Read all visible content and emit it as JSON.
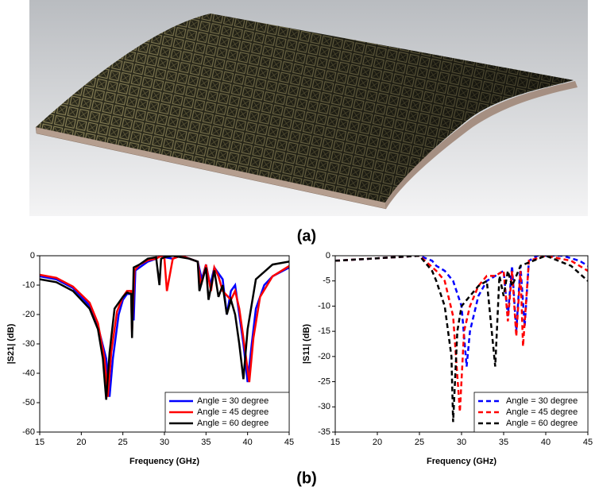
{
  "figure": {
    "label_a": "(a)",
    "label_b": "(b)"
  },
  "chart_data": [
    {
      "type": "line",
      "xlabel": "Frequency (GHz)",
      "ylabel": "|S21| (dB)",
      "xlim": [
        15,
        45
      ],
      "xticks": [
        15,
        20,
        25,
        30,
        35,
        40,
        45
      ],
      "ylim": [
        -60,
        0
      ],
      "yticks": [
        -60,
        -50,
        -40,
        -30,
        -20,
        -10,
        0
      ],
      "line_style": "solid",
      "legend": "lower right",
      "series": [
        {
          "name": "Angle = 30 degree",
          "color": "#0000ff",
          "x": [
            15,
            17,
            19,
            21,
            22,
            23,
            23.4,
            23.8,
            24.5,
            25,
            25.5,
            26,
            26.3,
            26.5,
            27,
            28,
            29,
            29.5,
            30,
            31,
            32,
            33,
            34,
            34.5,
            35,
            35.5,
            36,
            37,
            37.5,
            38,
            38.5,
            39,
            39.5,
            40,
            40.5,
            41,
            42,
            43,
            45
          ],
          "values": [
            -7,
            -8,
            -11,
            -17,
            -24,
            -35,
            -48,
            -35,
            -20,
            -15,
            -13,
            -13,
            -22,
            -5,
            -4,
            -2,
            -1,
            0,
            -0.5,
            -1,
            0,
            -1,
            -2,
            -8,
            -3,
            -10,
            -4,
            -8,
            -20,
            -12,
            -10,
            -20,
            -30,
            -43,
            -30,
            -18,
            -10,
            -7,
            -4
          ]
        },
        {
          "name": "Angle = 45 degree",
          "color": "#ff0000",
          "x": [
            15,
            17,
            19,
            21,
            22,
            22.8,
            23.2,
            23.6,
            24.3,
            25,
            25.5,
            26,
            26.1,
            26.4,
            27,
            28,
            29,
            29.6,
            30,
            30.3,
            31,
            32,
            33,
            34,
            34.4,
            35,
            35.6,
            36,
            36.5,
            37,
            38,
            38.5,
            39,
            39.5,
            40.2,
            40.7,
            41.5,
            43,
            45
          ],
          "values": [
            -6.5,
            -7.5,
            -10.5,
            -16,
            -23,
            -35,
            -48,
            -33,
            -19,
            -14,
            -12,
            -12,
            -26,
            -5,
            -3,
            -1.5,
            -1,
            0,
            -1,
            -12,
            -1,
            0,
            -1,
            -2,
            -10,
            -3,
            -12,
            -4,
            -7,
            -12,
            -15,
            -12,
            -18,
            -28,
            -43,
            -28,
            -14,
            -7,
            -3.5
          ]
        },
        {
          "name": "Angle = 60 degree",
          "color": "#000000",
          "x": [
            15,
            17,
            19,
            21,
            22,
            22.6,
            23,
            23.4,
            24,
            25,
            25.5,
            26,
            26.1,
            26.3,
            27,
            28,
            29,
            29.4,
            29.6,
            30,
            31,
            32,
            33,
            34,
            34.2,
            35,
            35.3,
            36,
            36.5,
            37,
            37.5,
            38,
            38.5,
            39,
            39.5,
            40,
            41,
            43,
            45
          ],
          "values": [
            -8,
            -9,
            -12,
            -18,
            -25,
            -35,
            -49,
            -33,
            -18,
            -14,
            -12.5,
            -13,
            -28,
            -4,
            -3,
            -1,
            -0.5,
            -10,
            -1,
            -0.5,
            0,
            -0.5,
            -1,
            -2,
            -12,
            -4,
            -15,
            -5,
            -14,
            -10,
            -20,
            -15,
            -20,
            -30,
            -42,
            -25,
            -8,
            -3,
            -2
          ]
        }
      ]
    },
    {
      "type": "line",
      "xlabel": "Frequency (GHz)",
      "ylabel": "|S11| (dB)",
      "xlim": [
        15,
        45
      ],
      "xticks": [
        15,
        20,
        25,
        30,
        35,
        40,
        45
      ],
      "ylim": [
        -35,
        0
      ],
      "yticks": [
        -35,
        -30,
        -25,
        -20,
        -15,
        -10,
        -5,
        0
      ],
      "line_style": "dashed",
      "legend": "lower right",
      "series": [
        {
          "name": "Angle = 30 degree",
          "color": "#0000ff",
          "x": [
            15,
            20,
            25,
            26.5,
            27,
            28,
            29,
            30,
            30.6,
            31,
            32,
            33,
            34,
            35,
            35.5,
            36,
            36.5,
            37,
            37.5,
            38,
            39,
            42,
            44,
            45
          ],
          "values": [
            -1,
            -0.5,
            0,
            -1,
            -2,
            -3,
            -5,
            -10,
            -22,
            -15,
            -8,
            -5,
            -4,
            -3,
            -12,
            -2,
            -15,
            -2,
            -14,
            -1,
            0,
            0,
            -1,
            -2
          ]
        },
        {
          "name": "Angle = 45 degree",
          "color": "#ff0000",
          "x": [
            15,
            20,
            25,
            27,
            28,
            29,
            29.8,
            30.3,
            31,
            32,
            33,
            34,
            35,
            35.5,
            36,
            36.5,
            37,
            37.3,
            38,
            40,
            43,
            45
          ],
          "values": [
            -1,
            -0.5,
            0,
            -3,
            -5,
            -12,
            -31,
            -15,
            -10,
            -6,
            -4,
            -4,
            -3,
            -13,
            -3,
            -16,
            -3,
            -18,
            -1,
            0,
            -1,
            -3
          ]
        },
        {
          "name": "Angle = 60 degree",
          "color": "#000000",
          "x": [
            15,
            20,
            25,
            26.5,
            27,
            28,
            28.8,
            29,
            29.5,
            30,
            31,
            32,
            33,
            34,
            34.5,
            35,
            35.5,
            36,
            37,
            40,
            43,
            45
          ],
          "values": [
            -1,
            -0.5,
            0,
            -3,
            -5,
            -10,
            -20,
            -33,
            -15,
            -10,
            -8,
            -6,
            -5,
            -22,
            -4,
            -8,
            -3,
            -6,
            -2,
            0,
            -2,
            -5
          ]
        }
      ]
    }
  ]
}
